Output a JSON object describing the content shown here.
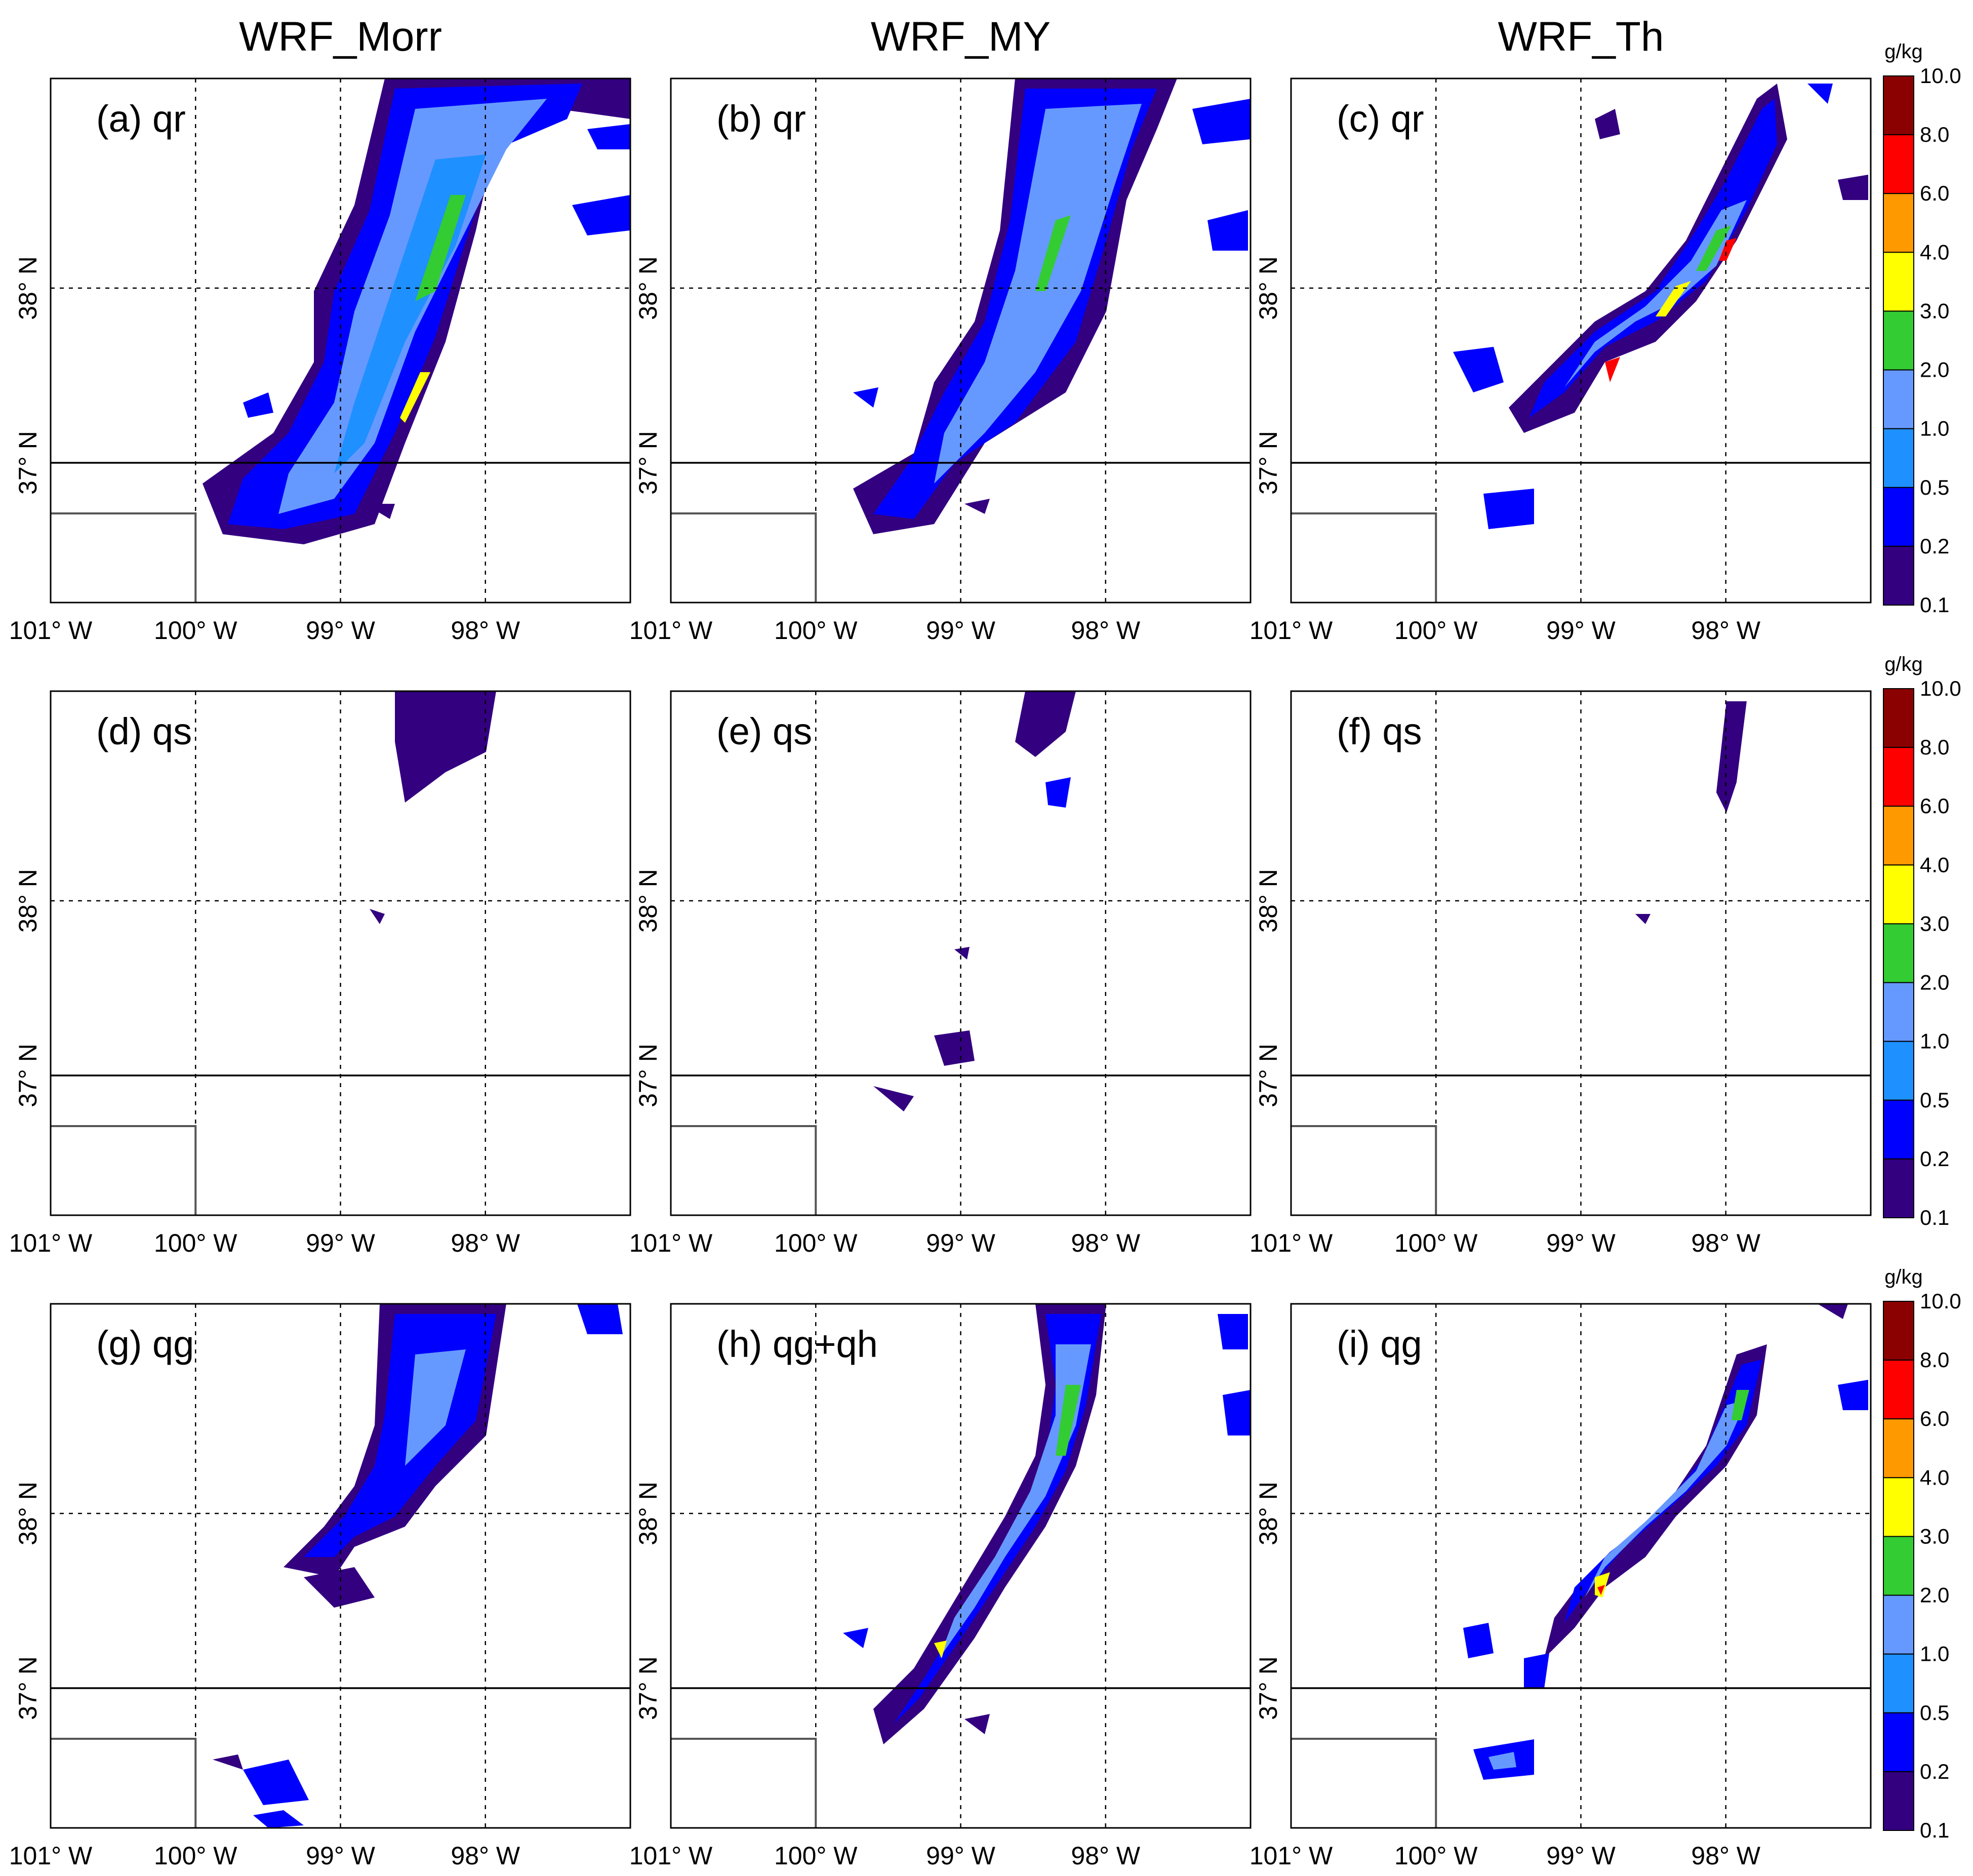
{
  "column_titles": [
    "WRF_Morr",
    "WRF_MY",
    "WRF_Th"
  ],
  "panels": [
    {
      "label": "(a) qr",
      "row": 0,
      "col": 0
    },
    {
      "label": "(b) qr",
      "row": 0,
      "col": 1
    },
    {
      "label": "(c) qr",
      "row": 0,
      "col": 2
    },
    {
      "label": "(d) qs",
      "row": 1,
      "col": 0
    },
    {
      "label": "(e) qs",
      "row": 1,
      "col": 1
    },
    {
      "label": "(f) qs",
      "row": 1,
      "col": 2
    },
    {
      "label": "(g) qg",
      "row": 2,
      "col": 0
    },
    {
      "label": "(h) qg+qh",
      "row": 2,
      "col": 1
    },
    {
      "label": "(i) qg",
      "row": 2,
      "col": 2
    }
  ],
  "axes": {
    "lon_labels": [
      "101° W",
      "100° W",
      "99° W",
      "98° W"
    ],
    "lon_values": [
      -101,
      -100,
      -99,
      -98
    ],
    "lat_labels": [
      "38° N",
      "37° N"
    ],
    "lat_values": [
      38,
      37
    ],
    "lon_range": [
      -101,
      -97
    ],
    "lat_range": [
      36.2,
      39.2
    ]
  },
  "colorbar": {
    "unit": "g/kg",
    "levels": [
      "10.0",
      "8.0",
      "6.0",
      "4.0",
      "3.0",
      "2.0",
      "1.0",
      "0.5",
      "0.2",
      "0.1"
    ],
    "colors": [
      "#8b0000",
      "#ff0000",
      "#ff9900",
      "#ffff00",
      "#33cc33",
      "#6699ff",
      "#1e90ff",
      "#0000ff",
      "#330080"
    ]
  },
  "colors": {
    "border": "#000000",
    "state_line": "#000000",
    "county_box": "#555555"
  }
}
